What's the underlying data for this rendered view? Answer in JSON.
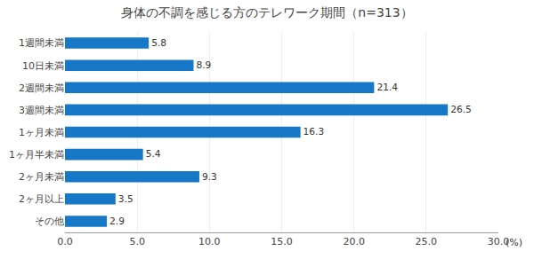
{
  "chart_data": {
    "type": "bar",
    "orientation": "horizontal",
    "title": "身体の不調を感じる方のテレワーク期間（n=313）",
    "categories": [
      "1週間未満",
      "10日未満",
      "2週間未満",
      "3週間未満",
      "1ヶ月未満",
      "1ヶ月半未満",
      "2ヶ月未満",
      "2ヶ月以上",
      "その他"
    ],
    "values": [
      5.8,
      8.9,
      21.4,
      26.5,
      16.3,
      5.4,
      9.3,
      3.5,
      2.9
    ],
    "color": "#1878c8",
    "xlim": [
      0,
      30.0
    ],
    "xticks": [
      {
        "value": 0.0,
        "label": "0.0"
      },
      {
        "value": 5.0,
        "label": "5.0"
      },
      {
        "value": 10.0,
        "label": "10.0"
      },
      {
        "value": 15.0,
        "label": "15.0"
      },
      {
        "value": 20.0,
        "label": "20.0"
      },
      {
        "value": 25.0,
        "label": "25.0"
      },
      {
        "value": 30.0,
        "label": "30.0"
      }
    ],
    "grid": true,
    "data_labels": true,
    "annotations": [
      "(%)"
    ]
  }
}
